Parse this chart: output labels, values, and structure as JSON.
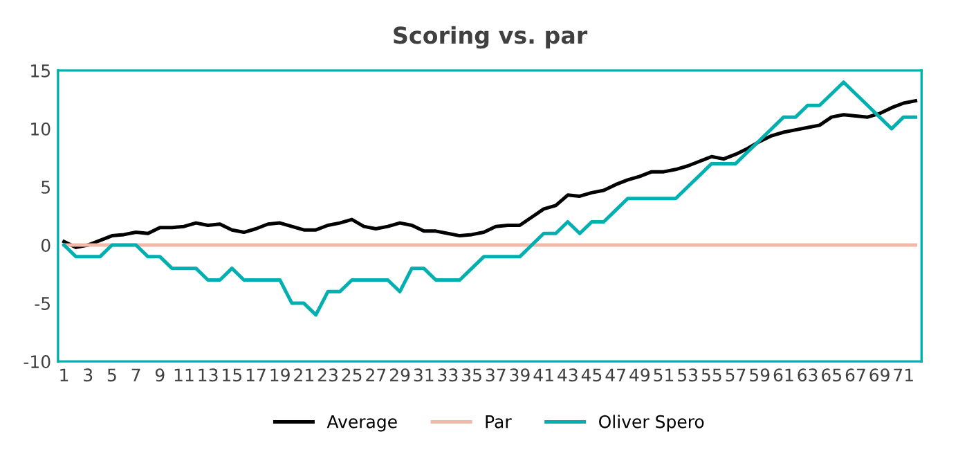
{
  "chart_data": {
    "type": "line",
    "title": "Scoring vs. par",
    "categories": [
      "1",
      null,
      "3",
      null,
      "5",
      null,
      "7",
      null,
      "9",
      null,
      "11",
      null,
      "13",
      null,
      "15",
      null,
      "17",
      null,
      "19",
      null,
      "21",
      null,
      "23",
      null,
      "25",
      null,
      "27",
      null,
      "29",
      null,
      "31",
      null,
      "33",
      null,
      "35",
      null,
      "37",
      null,
      "39",
      null,
      "41",
      null,
      "43",
      null,
      "45",
      null,
      "47",
      null,
      "49",
      null,
      "51",
      null,
      "53",
      null,
      "55",
      null,
      "57",
      null,
      "59",
      null,
      "61",
      null,
      "63",
      null,
      "65",
      null,
      "67",
      null,
      "69",
      null,
      "71",
      null
    ],
    "series": [
      {
        "name": "Average",
        "color": "#000000",
        "values": [
          0.3,
          -0.2,
          0,
          0.4,
          0.8,
          0.9,
          1.1,
          1.0,
          1.5,
          1.5,
          1.6,
          1.9,
          1.7,
          1.8,
          1.3,
          1.1,
          1.4,
          1.8,
          1.9,
          1.6,
          1.3,
          1.3,
          1.7,
          1.9,
          2.2,
          1.6,
          1.4,
          1.6,
          1.9,
          1.7,
          1.2,
          1.2,
          1.0,
          0.8,
          0.9,
          1.1,
          1.6,
          1.7,
          1.7,
          2.4,
          3.1,
          3.4,
          4.3,
          4.2,
          4.5,
          4.7,
          5.2,
          5.6,
          5.9,
          6.3,
          6.3,
          6.5,
          6.8,
          7.2,
          7.6,
          7.4,
          7.8,
          8.3,
          8.9,
          9.4,
          9.7,
          9.9,
          10.1,
          10.3,
          11.0,
          11.2,
          11.1,
          11.0,
          11.3,
          11.8,
          12.2,
          12.4
        ]
      },
      {
        "name": "Par",
        "color": "#f4b8a8",
        "values": [
          0,
          0,
          0,
          0,
          0,
          0,
          0,
          0,
          0,
          0,
          0,
          0,
          0,
          0,
          0,
          0,
          0,
          0,
          0,
          0,
          0,
          0,
          0,
          0,
          0,
          0,
          0,
          0,
          0,
          0,
          0,
          0,
          0,
          0,
          0,
          0,
          0,
          0,
          0,
          0,
          0,
          0,
          0,
          0,
          0,
          0,
          0,
          0,
          0,
          0,
          0,
          0,
          0,
          0,
          0,
          0,
          0,
          0,
          0,
          0,
          0,
          0,
          0,
          0,
          0,
          0,
          0,
          0,
          0,
          0,
          0,
          0
        ]
      },
      {
        "name": "Oliver Spero",
        "color": "#00b0b0",
        "values": [
          0,
          -1,
          -1,
          -1,
          0,
          0,
          0,
          -1,
          -1,
          -2,
          -2,
          -2,
          -3,
          -3,
          -2,
          -3,
          -3,
          -3,
          -3,
          -5,
          -5,
          -6,
          -4,
          -4,
          -3,
          -3,
          -3,
          -3,
          -4,
          -2,
          -2,
          -3,
          -3,
          -3,
          -2,
          -1,
          -1,
          -1,
          -1,
          0,
          1,
          1,
          2,
          1,
          2,
          2,
          3,
          4,
          4,
          4,
          4,
          4,
          5,
          6,
          7,
          7,
          7,
          8,
          9,
          10,
          11,
          11,
          12,
          12,
          13,
          14,
          13,
          12,
          11,
          10,
          11,
          11
        ]
      }
    ],
    "ylim": [
      -10,
      15
    ],
    "yticks": [
      -10,
      -5,
      0,
      5,
      10,
      15
    ],
    "grid": false,
    "legend": "bottom",
    "marker": "none",
    "line_style": "solid"
  }
}
